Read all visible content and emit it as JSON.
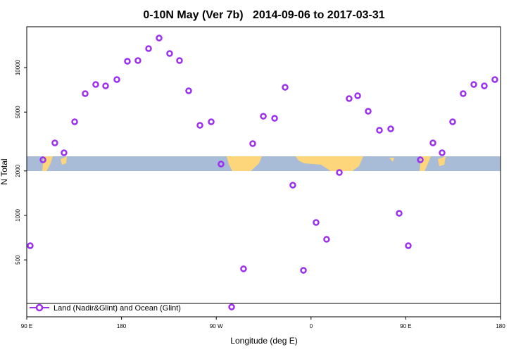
{
  "chart_data": {
    "type": "scatter",
    "title": "0-10N May (Ver 7b)   2014-09-06 to 2017-03-31",
    "x_label": "Longitude (deg E)",
    "y_label": "N Total",
    "yscale": "log",
    "xlim": [
      90,
      540
    ],
    "ylim": [
      206,
      18900
    ],
    "xticks": [
      {
        "value": 90,
        "label": "90 E"
      },
      {
        "value": 180,
        "label": "180"
      },
      {
        "value": 270,
        "label": "90 W"
      },
      {
        "value": 360,
        "label": "0"
      },
      {
        "value": 450,
        "label": "90 E"
      },
      {
        "value": 540,
        "label": "180"
      }
    ],
    "yticks": [
      500,
      1000,
      2000,
      5000,
      10000
    ],
    "x": [
      93.3,
      105.4,
      116.7,
      125.4,
      135.5,
      145.5,
      155.5,
      164.9,
      175.6,
      185.6,
      195.6,
      205.7,
      215.7,
      225.7,
      235.1,
      243.8,
      254.5,
      265.2,
      274.5,
      284.6,
      295.9,
      304.6,
      314.7,
      325.4,
      335.4,
      342.7,
      352.8,
      364.8,
      374.8,
      386.9,
      396.2,
      404.3,
      414.3,
      425.0,
      435.7,
      443.7,
      452.4,
      463.8,
      475.8,
      484.5,
      494.5,
      504.5,
      514.6,
      524.6,
      534.6
    ],
    "series": [
      {
        "name": "Land (Nadir&Glint) and Ocean (Glint)",
        "color": "#9b30f0",
        "values": [
          624,
          2378,
          3093,
          2652,
          4300,
          6665,
          7690,
          7520,
          8300,
          11040,
          11160,
          13450,
          15850,
          12460,
          11160,
          6965,
          4070,
          4300,
          2227,
          240,
          435,
          3060,
          4690,
          4540,
          7360,
          1602,
          425,
          896,
          689,
          1951,
          6170,
          6450,
          5070,
          3770,
          3850,
          1033,
          624,
          2378,
          3093,
          2652,
          4300,
          6665,
          7690,
          7520,
          8300
        ]
      }
    ]
  }
}
